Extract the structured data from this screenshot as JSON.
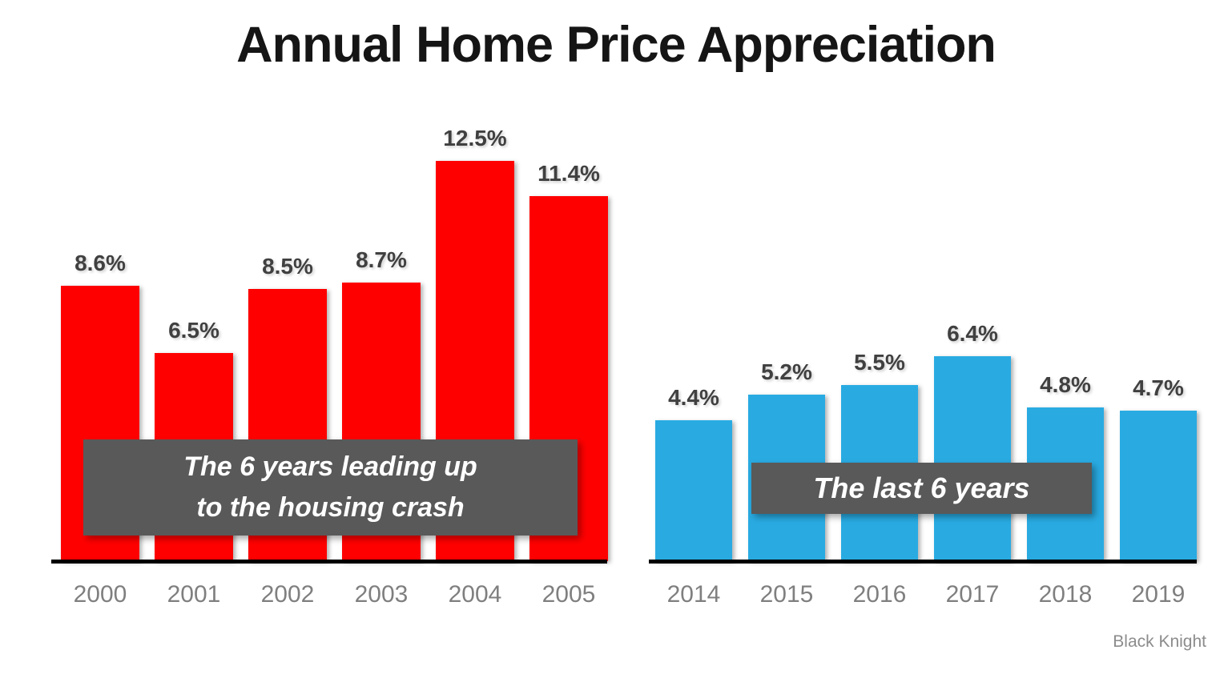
{
  "title": "Annual Home Price Appreciation",
  "source": "Black Knight",
  "overlays": {
    "left_line1": "The 6 years leading up",
    "left_line2": "to the housing crash",
    "right_line1": "The last 6 years"
  },
  "colors": {
    "red_bar": "#FF0000",
    "blue_bar": "#29ABE2",
    "overlay_gray": "#595959",
    "title_text": "#151515",
    "value_label_text": "#404040",
    "year_label_text": "#7F7F7F",
    "source_text": "#8C8C8C",
    "axis": "#000000",
    "background": "#FFFFFF"
  },
  "chart_data": [
    {
      "type": "bar",
      "title": "The 6 years leading up to the housing crash",
      "categories": [
        "2000",
        "2001",
        "2002",
        "2003",
        "2004",
        "2005"
      ],
      "values": [
        8.6,
        6.5,
        8.5,
        8.7,
        12.5,
        11.4
      ],
      "value_suffix": "%",
      "bar_color": "#FF0000",
      "xlabel": "",
      "ylabel": "",
      "ylim": [
        0,
        13.5
      ],
      "grid": false,
      "legend": false,
      "data_labels": true
    },
    {
      "type": "bar",
      "title": "The last 6 years",
      "categories": [
        "2014",
        "2015",
        "2016",
        "2017",
        "2018",
        "2019"
      ],
      "values": [
        4.4,
        5.2,
        5.5,
        6.4,
        4.8,
        4.7
      ],
      "value_suffix": "%",
      "bar_color": "#29ABE2",
      "xlabel": "",
      "ylabel": "",
      "ylim": [
        0,
        13.5
      ],
      "grid": false,
      "legend": false,
      "data_labels": true
    }
  ]
}
